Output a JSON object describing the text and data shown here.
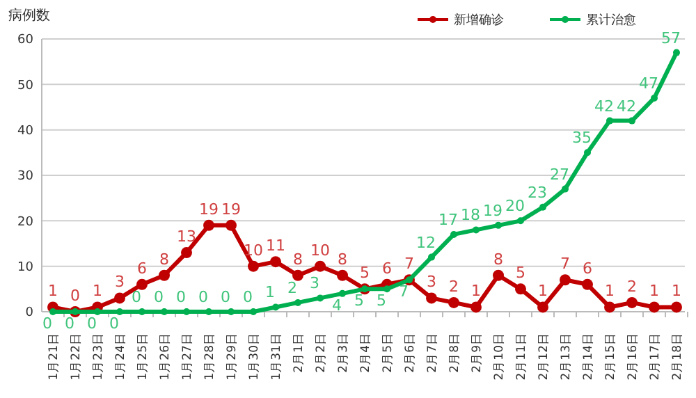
{
  "chart_data": {
    "type": "line",
    "ylabel": "病例数",
    "categories": [
      "1月21日",
      "1月22日",
      "1月23日",
      "1月24日",
      "1月25日",
      "1月26日",
      "1月27日",
      "1月28日",
      "1月29日",
      "1月30日",
      "1月31日",
      "2月1日",
      "2月2日",
      "2月3日",
      "2月4日",
      "2月5日",
      "2月6日",
      "2月7日",
      "2月8日",
      "2月9日",
      "2月10日",
      "2月11日",
      "2月12日",
      "2月13日",
      "2月14日",
      "2月15日",
      "2月16日",
      "2月17日",
      "2月18日"
    ],
    "series": [
      {
        "name": "新增确诊",
        "color": "#c00000",
        "values": [
          1,
          0,
          1,
          3,
          6,
          8,
          13,
          19,
          19,
          10,
          11,
          8,
          10,
          8,
          5,
          6,
          7,
          3,
          2,
          1,
          8,
          5,
          1,
          7,
          6,
          1,
          2,
          1,
          1
        ]
      },
      {
        "name": "累计治愈",
        "color": "#00b050",
        "values": [
          0,
          0,
          0,
          0,
          0,
          0,
          0,
          0,
          0,
          0,
          1,
          2,
          3,
          4,
          5,
          5,
          7,
          12,
          17,
          18,
          19,
          20,
          23,
          27,
          35,
          42,
          42,
          47,
          57
        ]
      }
    ],
    "ylim": [
      0,
      60
    ],
    "yticks": [
      0,
      10,
      20,
      30,
      40,
      50,
      60
    ],
    "grid": "y",
    "legend": "top right",
    "marker": "circle",
    "data_labels": true
  }
}
